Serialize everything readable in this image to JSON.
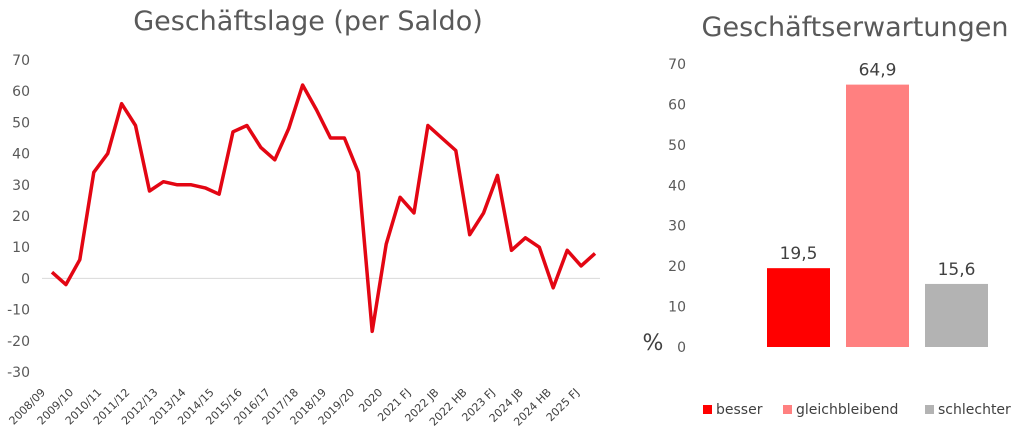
{
  "chart_data": [
    {
      "type": "line",
      "title": "Geschäftslage (per Saldo)",
      "xlabel": "",
      "ylabel": "",
      "ylim": [
        -30,
        70
      ],
      "yticks": [
        "70",
        "60",
        "50",
        "40",
        "30",
        "20",
        "10",
        "0",
        "-10",
        "-20",
        "-30"
      ],
      "tick_labels": [
        "2008/09",
        "2009/10",
        "2010/11",
        "2011/12",
        "2012/13",
        "2013/14",
        "2014/15",
        "2015/16",
        "2016/17",
        "2017/18",
        "2018/19",
        "2019/20",
        "2020",
        "2021 FJ",
        "2022 JB",
        "2022 HB",
        "2023 FJ",
        "2024 JB",
        "2024 HB",
        "2025 FJ"
      ],
      "color": "#e30613",
      "grid": false,
      "series": [
        {
          "values": [
            2,
            -2,
            6,
            34,
            40,
            56,
            49,
            28,
            31,
            30,
            30,
            29,
            27,
            47,
            49,
            42,
            38,
            48,
            62,
            54,
            45,
            45,
            34,
            -17,
            11,
            26,
            21,
            49,
            45,
            41,
            14,
            21,
            33,
            9,
            13,
            10,
            -3,
            9,
            4,
            8
          ]
        }
      ]
    },
    {
      "type": "bar",
      "title": "Geschäftserwartungen",
      "ylabel": "%",
      "ylim": [
        0,
        70
      ],
      "yticks": [
        "70",
        "60",
        "50",
        "40",
        "30",
        "20",
        "10",
        "0"
      ],
      "categories": [
        "besser",
        "gleichbleibend",
        "schlechter"
      ],
      "values": [
        19.5,
        64.9,
        15.6
      ],
      "value_labels": [
        "19,5",
        "64,9",
        "15,6"
      ],
      "colors": [
        "#ff0000",
        "#ff8080",
        "#b3b3b3"
      ],
      "legend": "bottom",
      "grid": false
    }
  ]
}
